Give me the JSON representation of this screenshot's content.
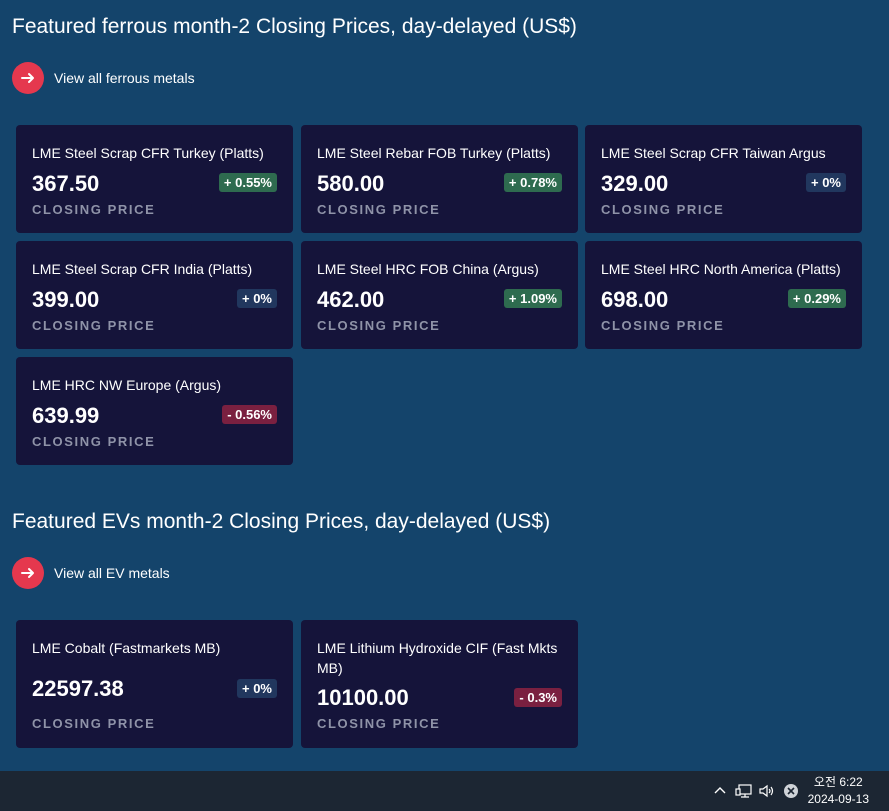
{
  "ferrous": {
    "title": "Featured ferrous month-2 Closing Prices, day-delayed (US$)",
    "view_all_label": "View all ferrous metals",
    "cards": [
      {
        "name": "LME Steel Scrap CFR Turkey (Platts)",
        "price": "367.50",
        "change": "+ 0.55%",
        "direction": "up",
        "label": "CLOSING PRICE"
      },
      {
        "name": "LME Steel Rebar FOB Turkey (Platts)",
        "price": "580.00",
        "change": "+ 0.78%",
        "direction": "up",
        "label": "CLOSING PRICE"
      },
      {
        "name": "LME Steel Scrap CFR Taiwan Argus",
        "price": "329.00",
        "change": "+ 0%",
        "direction": "flat",
        "label": "CLOSING PRICE"
      },
      {
        "name": "LME Steel Scrap CFR India (Platts)",
        "price": "399.00",
        "change": "+ 0%",
        "direction": "flat",
        "label": "CLOSING PRICE"
      },
      {
        "name": "LME Steel HRC FOB China (Argus)",
        "price": "462.00",
        "change": "+ 1.09%",
        "direction": "up",
        "label": "CLOSING PRICE"
      },
      {
        "name": "LME Steel HRC North America (Platts)",
        "price": "698.00",
        "change": "+ 0.29%",
        "direction": "up",
        "label": "CLOSING PRICE"
      },
      {
        "name": "LME HRC NW Europe (Argus)",
        "price": "639.99",
        "change": "- 0.56%",
        "direction": "down",
        "label": "CLOSING PRICE"
      }
    ]
  },
  "evs": {
    "title": "Featured EVs month-2 Closing Prices, day-delayed (US$)",
    "view_all_label": "View all EV metals",
    "cards": [
      {
        "name": "LME Cobalt (Fastmarkets MB)",
        "price": "22597.38",
        "change": "+ 0%",
        "direction": "flat",
        "label": "CLOSING PRICE"
      },
      {
        "name": "LME Lithium Hydroxide CIF (Fast Mkts MB)",
        "price": "10100.00",
        "change": "- 0.3%",
        "direction": "down",
        "label": "CLOSING PRICE"
      }
    ]
  },
  "colors": {
    "background": "#14446b",
    "card": "#15143a",
    "accent_red": "#e5384e",
    "badge_up": "#2e6b4f",
    "badge_flat": "#21375e",
    "badge_down": "#7a2040"
  },
  "taskbar": {
    "icons": [
      "chevron-up-icon",
      "network-icon",
      "volume-icon",
      "close-circle-icon"
    ],
    "time": "오전 6:22",
    "date": "2024-09-13"
  }
}
